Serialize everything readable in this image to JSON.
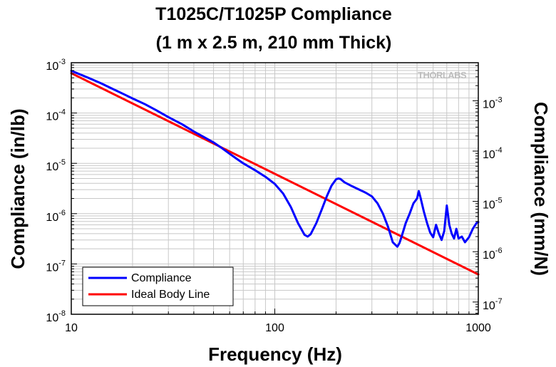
{
  "chart_data": {
    "type": "line",
    "title": [
      "T1025C/T1025P Compliance",
      "(1 m x 2.5 m, 210 mm Thick)"
    ],
    "xlabel": "Frequency (Hz)",
    "ylabel": "Compliance (in/lb)",
    "y2label": "Compliance (mm/N)",
    "x_scale": "log",
    "y_scale": "log",
    "xlim": [
      10,
      1000
    ],
    "ylim": [
      1e-08,
      0.001
    ],
    "y2lim": [
      5.71e-08,
      0.00571
    ],
    "grid": true,
    "legend_position": "bottom-left",
    "watermark": "THORLABS",
    "x_ticks": [
      {
        "value": 10,
        "label": "10"
      },
      {
        "value": 100,
        "label": "100"
      },
      {
        "value": 1000,
        "label": "1000"
      }
    ],
    "y_ticks": [
      {
        "value": 1e-08,
        "base": "10",
        "exp": "-8"
      },
      {
        "value": 1e-07,
        "base": "10",
        "exp": "-7"
      },
      {
        "value": 1e-06,
        "base": "10",
        "exp": "-6"
      },
      {
        "value": 1e-05,
        "base": "10",
        "exp": "-5"
      },
      {
        "value": 0.0001,
        "base": "10",
        "exp": "-4"
      },
      {
        "value": 0.001,
        "base": "10",
        "exp": "-3"
      }
    ],
    "y2_ticks": [
      {
        "value": 1e-07,
        "base": "10",
        "exp": "-7"
      },
      {
        "value": 1e-06,
        "base": "10",
        "exp": "-6"
      },
      {
        "value": 1e-05,
        "base": "10",
        "exp": "-5"
      },
      {
        "value": 0.0001,
        "base": "10",
        "exp": "-4"
      },
      {
        "value": 0.001,
        "base": "10",
        "exp": "-3"
      }
    ],
    "series": [
      {
        "name": "Compliance",
        "color": "#0000ff",
        "x": [
          10,
          11,
          12,
          14,
          16,
          18,
          20,
          23,
          26,
          30,
          35,
          40,
          45,
          50,
          55,
          60,
          65,
          70,
          75,
          80,
          90,
          100,
          110,
          120,
          130,
          140,
          145,
          150,
          160,
          170,
          180,
          190,
          200,
          205,
          210,
          220,
          240,
          260,
          280,
          300,
          320,
          340,
          360,
          380,
          400,
          410,
          420,
          440,
          460,
          480,
          500,
          510,
          520,
          540,
          560,
          580,
          600,
          620,
          640,
          660,
          680,
          700,
          720,
          740,
          760,
          780,
          800,
          830,
          860,
          900,
          940,
          980,
          1000
        ],
        "y": [
          0.00069,
          0.00059,
          0.00051,
          0.00039,
          0.0003,
          0.00024,
          0.000195,
          0.00015,
          0.000115,
          8.3e-05,
          6e-05,
          4.3e-05,
          3.3e-05,
          2.6e-05,
          2e-05,
          1.55e-05,
          1.23e-05,
          1e-05,
          8.5e-06,
          7.3e-06,
          5.4e-06,
          3.9e-06,
          2.5e-06,
          1.35e-06,
          6.5e-07,
          3.8e-07,
          3.5e-07,
          3.9e-07,
          6.5e-07,
          1.2e-06,
          2.2e-06,
          3.6e-06,
          4.8e-06,
          5e-06,
          4.9e-06,
          4.2e-06,
          3.5e-06,
          3e-06,
          2.6e-06,
          2.2e-06,
          1.6e-06,
          1e-06,
          5.5e-07,
          2.7e-07,
          2.2e-07,
          2.6e-07,
          3.5e-07,
          6.5e-07,
          1e-06,
          1.6e-06,
          2e-06,
          2.8e-06,
          2.1e-06,
          1.1e-06,
          6.5e-07,
          4.2e-07,
          3.4e-07,
          6e-07,
          4e-07,
          3e-07,
          4.5e-07,
          1.45e-06,
          6e-07,
          4e-07,
          3.2e-07,
          5e-07,
          3.2e-07,
          3.5e-07,
          2.7e-07,
          3.4e-07,
          5e-07,
          6.5e-07,
          6.8e-07
        ]
      },
      {
        "name": "Ideal Body Line",
        "color": "#ff0000",
        "x": [
          10,
          1000
        ],
        "y": [
          0.00062,
          6.2e-08
        ]
      }
    ]
  }
}
